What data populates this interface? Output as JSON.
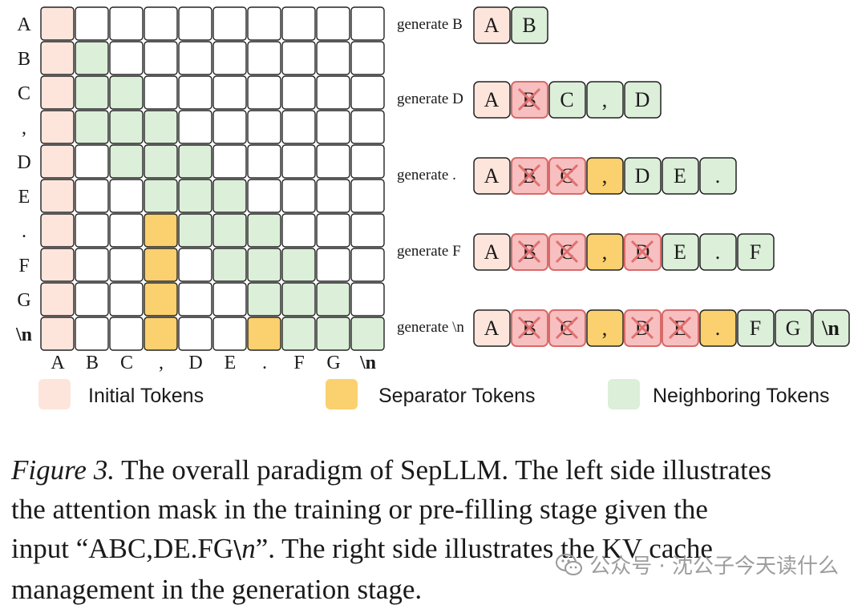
{
  "matrix": {
    "row_labels": [
      "A",
      "B",
      "C",
      ",",
      "D",
      "E",
      ".",
      "F",
      "G",
      "\\n"
    ],
    "col_labels": [
      "A",
      "B",
      "C",
      ",",
      "D",
      "E",
      ".",
      "F",
      "G",
      "\\n"
    ],
    "cells": [
      [
        "I",
        "W",
        "W",
        "W",
        "W",
        "W",
        "W",
        "W",
        "W",
        "W"
      ],
      [
        "I",
        "N",
        "W",
        "W",
        "W",
        "W",
        "W",
        "W",
        "W",
        "W"
      ],
      [
        "I",
        "N",
        "N",
        "W",
        "W",
        "W",
        "W",
        "W",
        "W",
        "W"
      ],
      [
        "I",
        "N",
        "N",
        "N",
        "W",
        "W",
        "W",
        "W",
        "W",
        "W"
      ],
      [
        "I",
        "W",
        "N",
        "N",
        "N",
        "W",
        "W",
        "W",
        "W",
        "W"
      ],
      [
        "I",
        "W",
        "W",
        "N",
        "N",
        "N",
        "W",
        "W",
        "W",
        "W"
      ],
      [
        "I",
        "W",
        "W",
        "S",
        "N",
        "N",
        "N",
        "W",
        "W",
        "W"
      ],
      [
        "I",
        "W",
        "W",
        "S",
        "W",
        "N",
        "N",
        "N",
        "W",
        "W"
      ],
      [
        "I",
        "W",
        "W",
        "S",
        "W",
        "W",
        "N",
        "N",
        "N",
        "W"
      ],
      [
        "I",
        "W",
        "W",
        "S",
        "W",
        "W",
        "S",
        "N",
        "N",
        "N"
      ]
    ]
  },
  "generation": [
    {
      "label": "generate B",
      "tokens": [
        {
          "t": "A",
          "k": "I"
        },
        {
          "t": "B",
          "k": "N"
        }
      ]
    },
    {
      "label": "generate D",
      "tokens": [
        {
          "t": "A",
          "k": "I"
        },
        {
          "t": "B",
          "k": "X"
        },
        {
          "t": "C",
          "k": "N"
        },
        {
          "t": ",",
          "k": "N"
        },
        {
          "t": "D",
          "k": "N"
        }
      ]
    },
    {
      "label": "generate .",
      "tokens": [
        {
          "t": "A",
          "k": "I"
        },
        {
          "t": "B",
          "k": "X"
        },
        {
          "t": "C",
          "k": "X"
        },
        {
          "t": ",",
          "k": "S"
        },
        {
          "t": "D",
          "k": "N"
        },
        {
          "t": "E",
          "k": "N"
        },
        {
          "t": ".",
          "k": "N"
        }
      ]
    },
    {
      "label": "generate F",
      "tokens": [
        {
          "t": "A",
          "k": "I"
        },
        {
          "t": "B",
          "k": "X"
        },
        {
          "t": "C",
          "k": "X"
        },
        {
          "t": ",",
          "k": "S"
        },
        {
          "t": "D",
          "k": "X"
        },
        {
          "t": "E",
          "k": "N"
        },
        {
          "t": ".",
          "k": "N"
        },
        {
          "t": "F",
          "k": "N"
        }
      ]
    },
    {
      "label": "generate \\n",
      "tokens": [
        {
          "t": "A",
          "k": "I"
        },
        {
          "t": "B",
          "k": "X"
        },
        {
          "t": "C",
          "k": "X"
        },
        {
          "t": ",",
          "k": "S"
        },
        {
          "t": "D",
          "k": "X"
        },
        {
          "t": "E",
          "k": "X"
        },
        {
          "t": ".",
          "k": "S"
        },
        {
          "t": "F",
          "k": "N"
        },
        {
          "t": "G",
          "k": "N"
        },
        {
          "t": "\\n",
          "k": "N"
        }
      ]
    }
  ],
  "legend": [
    {
      "label": "Initial Tokens",
      "kind": "I"
    },
    {
      "label": "Separator Tokens",
      "kind": "S"
    },
    {
      "label": "Neighboring Tokens",
      "kind": "N"
    }
  ],
  "colors": {
    "initial": "#fde5dc",
    "separator": "#fbd06e",
    "neighbor": "#dcefd9",
    "evicted": "#f7bfbf",
    "evicted_border": "#d96a6a",
    "cross": "#e07070",
    "white": "#ffffff",
    "border": "#222222"
  },
  "caption": {
    "figure_label": "Figure 3.",
    "line1": " The overall paradigm of SepLLM. The left side illustrates",
    "line2": "the attention mask in the training or pre-filling stage given the",
    "line3_a": "input “ABC,DE.FG",
    "line3_b": "\\n",
    "line3_c": "”. The right side illustrates the KV cache",
    "line4": "management in the generation stage."
  },
  "watermark": "公众号 · 沈公子今天读什么"
}
